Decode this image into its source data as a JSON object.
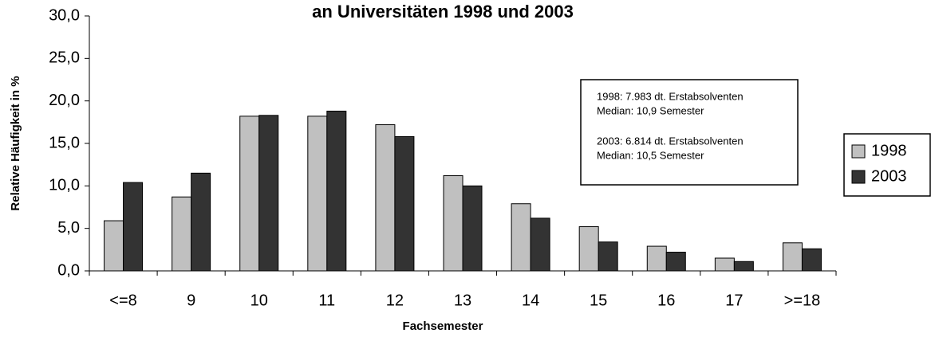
{
  "chart_data": {
    "type": "bar",
    "title": "an Universitäten 1998 und 2003",
    "x_label": "Fachsemester",
    "y_label": "Relative Häufigkeit in %",
    "categories": [
      "<=8",
      "9",
      "10",
      "11",
      "12",
      "13",
      "14",
      "15",
      "16",
      "17",
      ">=18"
    ],
    "series": [
      {
        "name": "1998",
        "color": "#c0c0c0",
        "values": [
          5.9,
          8.7,
          18.2,
          18.2,
          17.2,
          11.2,
          7.9,
          5.2,
          2.9,
          1.5,
          3.3
        ]
      },
      {
        "name": "2003",
        "color": "#333333",
        "values": [
          10.4,
          11.5,
          18.3,
          18.8,
          15.8,
          10.0,
          6.2,
          3.4,
          2.2,
          1.1,
          2.6
        ]
      }
    ],
    "ylim": [
      0,
      30
    ],
    "yticks": [
      {
        "value": 0,
        "label": "0,0"
      },
      {
        "value": 5,
        "label": "5,0"
      },
      {
        "value": 10,
        "label": "10,0"
      },
      {
        "value": 15,
        "label": "15,0"
      },
      {
        "value": 20,
        "label": "20,0"
      },
      {
        "value": 25,
        "label": "25,0"
      },
      {
        "value": 30,
        "label": "30,0"
      }
    ],
    "annotation": [
      "1998: 7.983 dt. Erstabsolventen",
      "Median: 10,9 Semester",
      "2003: 6.814 dt. Erstabsolventen",
      "Median: 10,5 Semester"
    ],
    "legend": "right"
  }
}
